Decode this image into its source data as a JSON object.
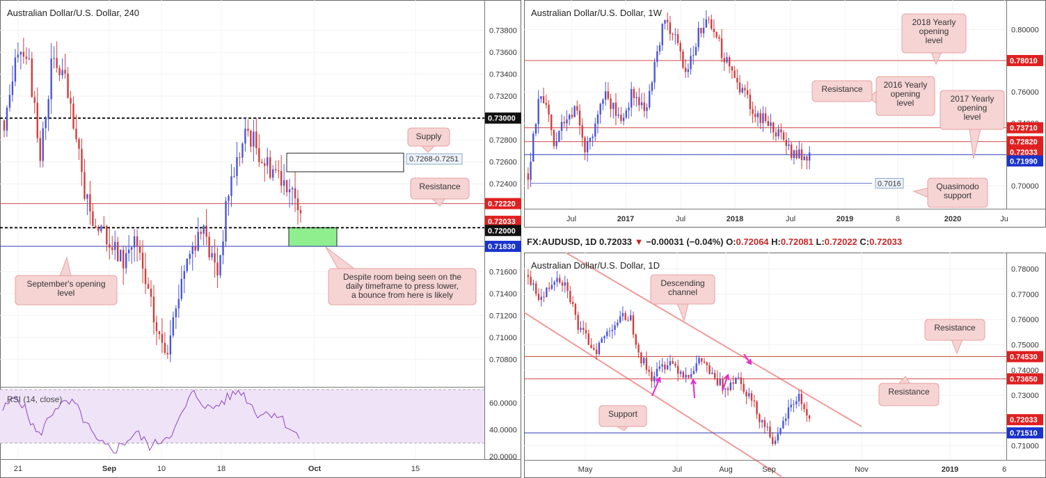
{
  "colors": {
    "up": "#4a55d6",
    "down": "#d23c3c",
    "red_line": "#d24a4a",
    "blue_line": "#2b38b8",
    "callout_fill": "#f6d4d4",
    "callout_stroke": "#e8a0a0",
    "channel": "#f09a9a",
    "rsi_band": "#efe3f8",
    "rsi_line": "#8a44b8",
    "zone": "#8fef8f",
    "arrow": "#ee22cc"
  },
  "panels": {
    "h4": {
      "title": "Australian Dollar/U.S. Dollar, 240",
      "y_ticks": [
        "0.73800",
        "0.73600",
        "0.73400",
        "0.73200",
        "0.72800",
        "0.72600",
        "0.72400",
        "0.71600",
        "0.71400",
        "0.71200",
        "0.71000",
        "0.70800"
      ],
      "x_ticks": [
        "21",
        "Sep",
        "10",
        "18",
        "Oct",
        "15"
      ],
      "price_tags": [
        {
          "label": "0.73000",
          "style": "black"
        },
        {
          "label": "0.72220",
          "style": "red"
        },
        {
          "label": "0.72033",
          "style": "red"
        },
        {
          "label": "0.72000",
          "style": "black"
        },
        {
          "label": "0.71830",
          "style": "blue"
        }
      ],
      "box_label": "0.7268-0.7251",
      "callouts": {
        "supply": "Supply",
        "resistance": "Resistance",
        "sept_open": "September's opening level",
        "bounce": "Despite room being seen on the daily timeframe to press lower, a bounce from here is likely"
      },
      "rsi": {
        "label": "RSI (14, close)",
        "y_ticks": [
          "60.0000",
          "40.0000",
          "20.0000"
        ]
      }
    },
    "weekly": {
      "title": "Australian Dollar/U.S. Dollar, 1W",
      "y_ticks": [
        "0.80000",
        "0.76000",
        "0.74000",
        "0.70000"
      ],
      "x_ticks": [
        "Jul",
        "2017",
        "Jul",
        "2018",
        "Jul",
        "2019",
        "8",
        "2020",
        "Ju"
      ],
      "price_tags": [
        {
          "label": "0.78010",
          "style": "red"
        },
        {
          "label": "0.73710",
          "style": "red"
        },
        {
          "label": "0.72820",
          "style": "red"
        },
        {
          "label": "0.72033",
          "style": "red"
        },
        {
          "label": "0.71990",
          "style": "blue"
        }
      ],
      "box_label": "0.7016",
      "callouts": {
        "y2018": "2018 Yearly opening level",
        "y2016": "2016 Yearly opening level",
        "y2017": "2017 Yearly opening level",
        "resistance": "Resistance",
        "quasimodo": "Quasimodo support"
      }
    },
    "daily": {
      "title": "Australian Dollar/U.S. Dollar, 1D",
      "y_ticks": [
        "0.78000",
        "0.77000",
        "0.76000",
        "0.75000",
        "0.74000",
        "0.73000",
        "0.71000"
      ],
      "x_ticks": [
        "May",
        "Jul",
        "Aug",
        "Sep",
        "Nov",
        "2019",
        "6"
      ],
      "price_tags": [
        {
          "label": "0.74530",
          "style": "red"
        },
        {
          "label": "0.73650",
          "style": "red"
        },
        {
          "label": "0.72033",
          "style": "red"
        },
        {
          "label": "0.71510",
          "style": "blue"
        }
      ],
      "callouts": {
        "channel": "Descending channel",
        "resistance_top": "Resistance",
        "resistance_mid": "Resistance",
        "support": "Support"
      }
    }
  },
  "infobar": {
    "symbol": "FX:AUDUSD, 1D",
    "last": "0.72033",
    "arrow": "▼",
    "change": "−0.00031 (−0.04%)",
    "o_label": "O:",
    "o": "0.72064",
    "h_label": "H:",
    "h": "0.72081",
    "l_label": "L:",
    "l": "0.72022",
    "c_label": "C:",
    "c": "0.72033"
  },
  "chart_data": [
    {
      "type": "candlestick",
      "title": "Australian Dollar/U.S. Dollar, 240",
      "ylim": [
        0.7065,
        0.7395
      ],
      "x_ticks": [
        "21",
        "Sep",
        "10",
        "18",
        "Oct",
        "15"
      ],
      "levels": [
        {
          "value": 0.73,
          "kind": "psychological"
        },
        {
          "value": 0.7222,
          "kind": "resistance"
        },
        {
          "value": 0.72,
          "kind": "psychological"
        },
        {
          "value": 0.7183,
          "kind": "September's opening level"
        }
      ],
      "supply_zone": [
        0.7251,
        0.7268
      ],
      "last_close": 0.72033,
      "rsi_ylim": [
        18,
        70
      ]
    },
    {
      "type": "candlestick",
      "title": "Australian Dollar/U.S. Dollar, 1W",
      "ylim": [
        0.6862,
        0.8135
      ],
      "levels": [
        {
          "value": 0.7801,
          "kind": "2018 Yearly opening level"
        },
        {
          "value": 0.7371,
          "kind": "2016 Yearly opening level"
        },
        {
          "value": 0.7282,
          "kind": "2017 Yearly opening level"
        },
        {
          "value": 0.7199,
          "kind": "support"
        },
        {
          "value": 0.7016,
          "kind": "Quasimodo support"
        }
      ],
      "last_close": 0.72033
    },
    {
      "type": "candlestick",
      "title": "Australian Dollar/U.S. Dollar, 1D",
      "ylim": [
        0.7044,
        0.7832
      ],
      "levels": [
        {
          "value": 0.7453,
          "kind": "resistance"
        },
        {
          "value": 0.7365,
          "kind": "resistance"
        },
        {
          "value": 0.7151,
          "kind": "support"
        }
      ],
      "descending_channel": true,
      "last_close": 0.72033
    }
  ]
}
